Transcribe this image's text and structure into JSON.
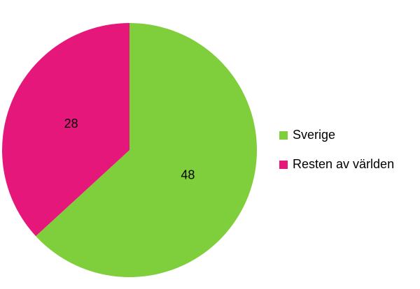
{
  "chart_data": {
    "type": "pie",
    "categories": [
      "Sverige",
      "Resten av världen"
    ],
    "values": [
      48,
      28
    ],
    "colors": [
      "#7fce3c",
      "#e5177b"
    ],
    "legend": "right"
  }
}
